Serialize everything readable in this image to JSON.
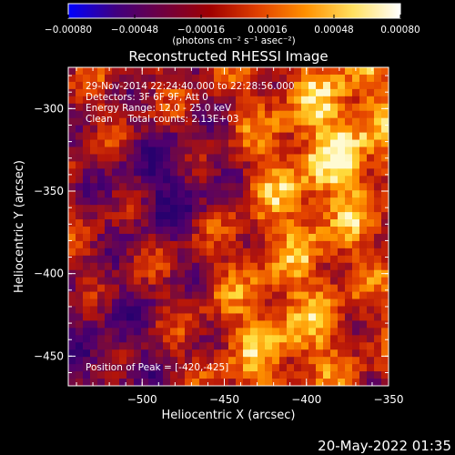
{
  "chart_data": {
    "type": "heatmap",
    "title": "Reconstructed RHESSI Image",
    "xlabel": "Heliocentric X (arcsec)",
    "ylabel": "Heliocentric Y (arcsec)",
    "xlim": [
      -545,
      -350
    ],
    "ylim": [
      -468,
      -275
    ],
    "x_ticks": [
      -500,
      -450,
      -400,
      -350
    ],
    "x_tick_labels": [
      "−500",
      "−450",
      "−400",
      "−350"
    ],
    "y_ticks": [
      -450,
      -400,
      -350,
      -300
    ],
    "y_tick_labels": [
      "−450",
      "−400",
      "−350",
      "−300"
    ],
    "colorbar": {
      "range": [
        -0.0008,
        0.0008
      ],
      "ticks": [
        -0.0008,
        -0.00048,
        -0.00016,
        0.00016,
        0.00048,
        0.0008
      ],
      "tick_labels": [
        "−0.00080",
        "−0.00048",
        "−0.00016",
        "0.00016",
        "0.00048",
        "0.00080"
      ],
      "units": "(photons cm⁻² s⁻¹ asec⁻²)",
      "colormap": [
        "#0000ff",
        "#400080",
        "#700040",
        "#a00000",
        "#e04000",
        "#ff9000",
        "#ffe060",
        "#ffffff"
      ]
    },
    "annotations": [
      "29-Nov-2014 22:24:40.000 to 22:28:56.000",
      "Detectors: 3F 6F 9F, Att 0",
      "Energy Range: 12.0 - 25.0 keV",
      "Clean     Total counts: 2.13E+03"
    ],
    "peak_label": "Position of Peak = [-420,-425]",
    "peak": [
      -420,
      -425
    ]
  },
  "footer": {
    "date": "20-May-2022 01:35"
  }
}
